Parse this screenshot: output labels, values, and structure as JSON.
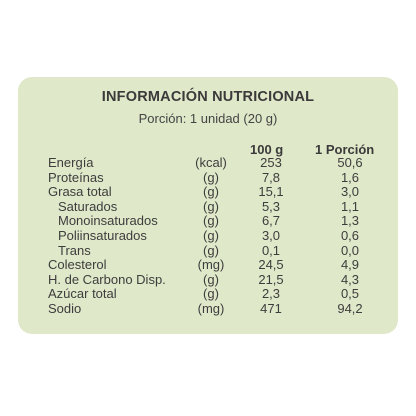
{
  "label": {
    "title": "INFORMACIÓN NUTRICIONAL",
    "portion": "Porción: 1 unidad (20 g)",
    "col_100g": "100 g",
    "col_portion": "1 Porción",
    "rows": [
      {
        "name": "Energía",
        "unit": "(kcal)",
        "v100": "253",
        "vpor": "50,6"
      },
      {
        "name": "Proteínas",
        "unit": "(g)",
        "v100": "7,8",
        "vpor": "1,6"
      },
      {
        "name": "Grasa total",
        "unit": "(g)",
        "v100": "15,1",
        "vpor": "3,0"
      },
      {
        "name": "Saturados",
        "unit": "(g)",
        "v100": "5,3",
        "vpor": "1,1"
      },
      {
        "name": "Monoinsaturados",
        "unit": "(g)",
        "v100": "6,7",
        "vpor": "1,3"
      },
      {
        "name": "Poliinsaturados",
        "unit": "(g)",
        "v100": "3,0",
        "vpor": "0,6"
      },
      {
        "name": "Trans",
        "unit": "(g)",
        "v100": "0,1",
        "vpor": "0,0"
      },
      {
        "name": "Colesterol",
        "unit": "(mg)",
        "v100": "24,5",
        "vpor": "4,9"
      },
      {
        "name": "H. de Carbono Disp.",
        "unit": "(g)",
        "v100": "21,5",
        "vpor": "4,3"
      },
      {
        "name": "Azúcar total",
        "unit": "(g)",
        "v100": "2,3",
        "vpor": "0,5"
      },
      {
        "name": "Sodio",
        "unit": "(mg)",
        "v100": "471",
        "vpor": "94,2"
      }
    ]
  }
}
